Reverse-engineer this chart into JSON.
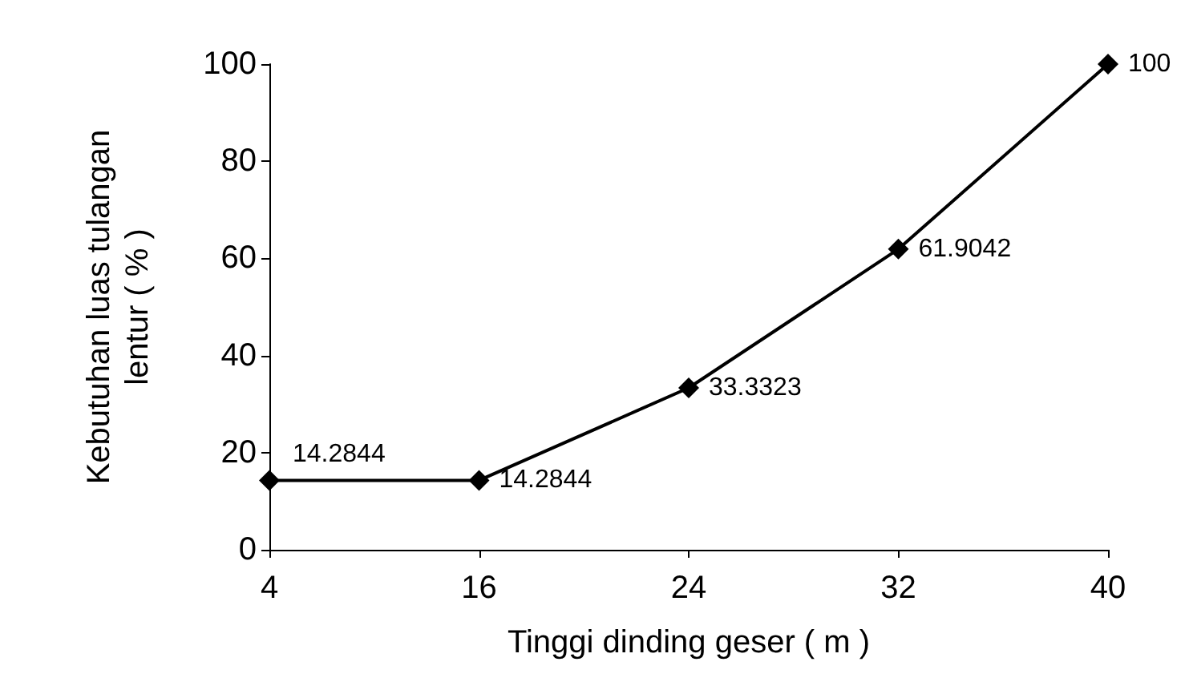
{
  "chart_data": {
    "type": "line",
    "xlabel": "Tinggi dinding geser ( m )",
    "ylabel": "Kebutuhan luas tulangan\nlentur ( % )",
    "categories": [
      "4",
      "16",
      "24",
      "32",
      "40"
    ],
    "series": [
      {
        "color": "#000000",
        "values": [
          14.2844,
          14.2844,
          33.3323,
          61.9042,
          100
        ]
      }
    ],
    "ylim": [
      0,
      100
    ],
    "yticks": [
      0,
      20,
      40,
      60,
      80,
      100
    ],
    "grid": false,
    "marker": "diamond",
    "line_style": "solid",
    "data_labels": true
  }
}
